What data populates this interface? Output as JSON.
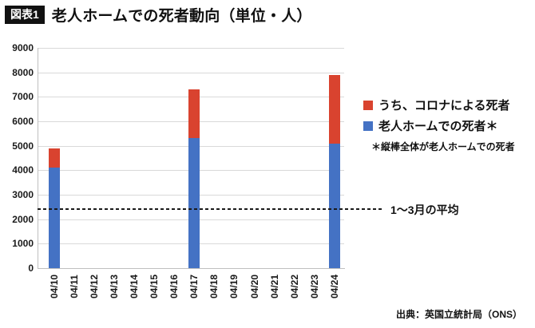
{
  "header": {
    "badge": "図表1",
    "title": "老人ホームでの死者動向（単位・人）"
  },
  "chart_data": {
    "type": "bar",
    "stacked": true,
    "title": "老人ホームでの死者動向（単位・人）",
    "categories": [
      "04/10",
      "04/11",
      "04/12",
      "04/13",
      "04/14",
      "04/15",
      "04/16",
      "04/17",
      "04/18",
      "04/19",
      "04/20",
      "04/21",
      "04/22",
      "04/23",
      "04/24"
    ],
    "series": [
      {
        "id": "care-home-deaths",
        "name": "老人ホームでの死者＊",
        "color": "#4472C4",
        "values": [
          4100,
          null,
          null,
          null,
          null,
          null,
          null,
          5300,
          null,
          null,
          null,
          null,
          null,
          null,
          5100
        ]
      },
      {
        "id": "covid-deaths",
        "name": "うち、コロナによる死者",
        "color": "#D9432F",
        "values": [
          800,
          null,
          null,
          null,
          null,
          null,
          null,
          2000,
          null,
          null,
          null,
          null,
          null,
          null,
          2800
        ]
      }
    ],
    "stack_totals": [
      4900,
      null,
      null,
      null,
      null,
      null,
      null,
      7300,
      null,
      null,
      null,
      null,
      null,
      null,
      7900
    ],
    "ylim": [
      0,
      9000
    ],
    "ytick_step": 1000,
    "grid": true,
    "average_line": {
      "value": 2400,
      "label": "1～3月の平均"
    },
    "legend": {
      "position": "right",
      "entries": [
        {
          "label": "うち、コロナによる死者",
          "color": "#D9432F"
        },
        {
          "label": "老人ホームでの死者＊",
          "color": "#4472C4"
        }
      ],
      "note": "＊縦棒全体が老人ホームでの死者"
    }
  },
  "source": "出典：英国立統計局（ONS）"
}
